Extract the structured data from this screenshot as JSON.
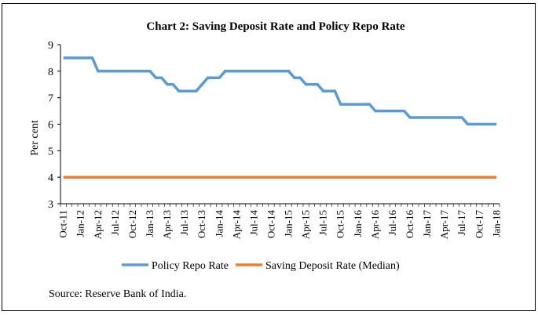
{
  "chart_data": {
    "type": "line",
    "title": "Chart 2: Saving Deposit Rate and Policy Repo Rate",
    "xlabel": "",
    "ylabel": "Per cent",
    "ylim": [
      3,
      9
    ],
    "yticks": [
      3,
      4,
      5,
      6,
      7,
      8,
      9
    ],
    "grid": false,
    "legend_position": "bottom",
    "x_tick_labels": [
      "Oct-11",
      "Jan-12",
      "Apr-12",
      "Jul-12",
      "Oct-12",
      "Jan-13",
      "Apr-13",
      "Jul-13",
      "Oct-13",
      "Jan-14",
      "Apr-14",
      "Jul-14",
      "Oct-14",
      "Jan-15",
      "Apr-15",
      "Jul-15",
      "Oct-15",
      "Jan-16",
      "Apr-16",
      "Jul-16",
      "Oct-16",
      "Jan-17",
      "Apr-17",
      "Jul-17",
      "Oct-17",
      "Jan-18"
    ],
    "x": [
      "Oct-11",
      "Nov-11",
      "Dec-11",
      "Jan-12",
      "Feb-12",
      "Mar-12",
      "Apr-12",
      "May-12",
      "Jun-12",
      "Jul-12",
      "Aug-12",
      "Sep-12",
      "Oct-12",
      "Nov-12",
      "Dec-12",
      "Jan-13",
      "Feb-13",
      "Mar-13",
      "Apr-13",
      "May-13",
      "Jun-13",
      "Jul-13",
      "Aug-13",
      "Sep-13",
      "Oct-13",
      "Nov-13",
      "Dec-13",
      "Jan-14",
      "Feb-14",
      "Mar-14",
      "Apr-14",
      "May-14",
      "Jun-14",
      "Jul-14",
      "Aug-14",
      "Sep-14",
      "Oct-14",
      "Nov-14",
      "Dec-14",
      "Jan-15",
      "Feb-15",
      "Mar-15",
      "Apr-15",
      "May-15",
      "Jun-15",
      "Jul-15",
      "Aug-15",
      "Sep-15",
      "Oct-15",
      "Nov-15",
      "Dec-15",
      "Jan-16",
      "Feb-16",
      "Mar-16",
      "Apr-16",
      "May-16",
      "Jun-16",
      "Jul-16",
      "Aug-16",
      "Sep-16",
      "Oct-16",
      "Nov-16",
      "Dec-16",
      "Jan-17",
      "Feb-17",
      "Mar-17",
      "Apr-17",
      "May-17",
      "Jun-17",
      "Jul-17",
      "Aug-17",
      "Sep-17",
      "Oct-17",
      "Nov-17",
      "Dec-17",
      "Jan-18"
    ],
    "series": [
      {
        "name": "Policy Repo Rate",
        "color": "#5b9bd5",
        "values": [
          8.5,
          8.5,
          8.5,
          8.5,
          8.5,
          8.5,
          8.0,
          8.0,
          8.0,
          8.0,
          8.0,
          8.0,
          8.0,
          8.0,
          8.0,
          8.0,
          7.75,
          7.75,
          7.5,
          7.5,
          7.25,
          7.25,
          7.25,
          7.25,
          7.5,
          7.75,
          7.75,
          7.75,
          8.0,
          8.0,
          8.0,
          8.0,
          8.0,
          8.0,
          8.0,
          8.0,
          8.0,
          8.0,
          8.0,
          8.0,
          7.75,
          7.75,
          7.5,
          7.5,
          7.5,
          7.25,
          7.25,
          7.25,
          6.75,
          6.75,
          6.75,
          6.75,
          6.75,
          6.75,
          6.5,
          6.5,
          6.5,
          6.5,
          6.5,
          6.5,
          6.25,
          6.25,
          6.25,
          6.25,
          6.25,
          6.25,
          6.25,
          6.25,
          6.25,
          6.25,
          6.0,
          6.0,
          6.0,
          6.0,
          6.0,
          6.0
        ]
      },
      {
        "name": "Saving Deposit Rate (Median)",
        "color": "#ed7d31",
        "values": [
          4,
          4,
          4,
          4,
          4,
          4,
          4,
          4,
          4,
          4,
          4,
          4,
          4,
          4,
          4,
          4,
          4,
          4,
          4,
          4,
          4,
          4,
          4,
          4,
          4,
          4,
          4,
          4,
          4,
          4,
          4,
          4,
          4,
          4,
          4,
          4,
          4,
          4,
          4,
          4,
          4,
          4,
          4,
          4,
          4,
          4,
          4,
          4,
          4,
          4,
          4,
          4,
          4,
          4,
          4,
          4,
          4,
          4,
          4,
          4,
          4,
          4,
          4,
          4,
          4,
          4,
          4,
          4,
          4,
          4,
          4,
          4,
          4,
          4,
          4,
          4
        ]
      }
    ]
  },
  "source_text": "Source: Reserve Bank of India."
}
